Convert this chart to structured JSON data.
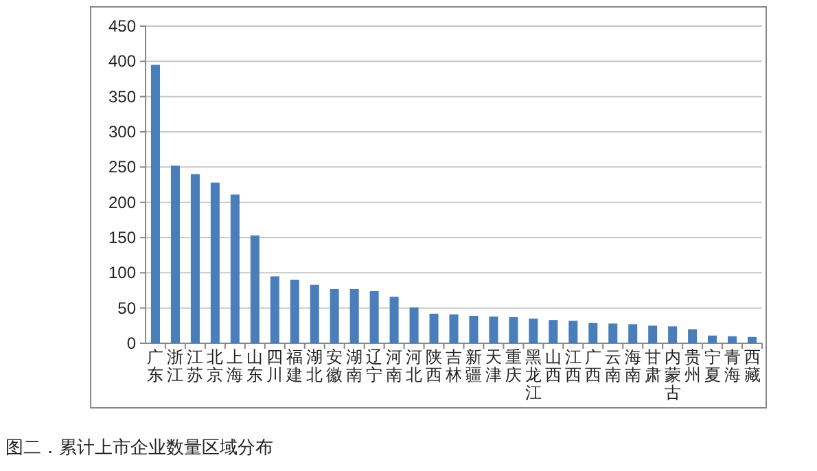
{
  "chart_data": {
    "type": "bar",
    "annotations": [
      "图二．累计上市企业数量区域分布"
    ],
    "categories": [
      "广东",
      "浙江",
      "江苏",
      "北京",
      "上海",
      "山东",
      "四川",
      "福建",
      "湖北",
      "安徽",
      "湖南",
      "辽宁",
      "河南",
      "河北",
      "陕西",
      "吉林",
      "新疆",
      "天津",
      "重庆",
      "黑龙江",
      "山西",
      "江西",
      "广西",
      "云南",
      "海南",
      "甘肃",
      "内蒙古",
      "贵州",
      "宁夏",
      "青海",
      "西藏"
    ],
    "values": [
      395,
      252,
      240,
      228,
      211,
      153,
      95,
      90,
      83,
      77,
      77,
      74,
      66,
      51,
      42,
      41,
      39,
      38,
      37,
      35,
      33,
      32,
      29,
      28,
      27,
      25,
      24,
      20,
      11,
      10,
      9
    ],
    "color": "#4a7ebb",
    "ylim": [
      0,
      450
    ],
    "yticks": [
      0,
      50,
      100,
      150,
      200,
      250,
      300,
      350,
      400,
      450
    ],
    "grid": "y"
  }
}
